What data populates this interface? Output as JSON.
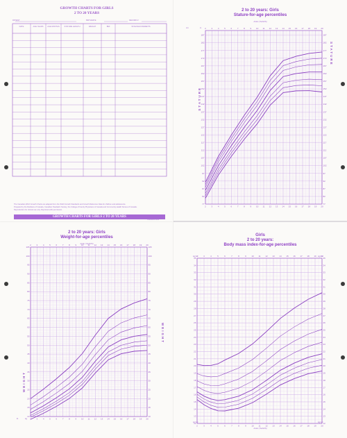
{
  "record": {
    "title": "GROWTH CHARTS FOR GIRLS",
    "subtitle": "2 TO 20 YEARS",
    "name_label": "PATIENT",
    "birthdate_label": "BIRTHDATE",
    "record_label": "RECORD #",
    "columns": [
      "DATE",
      "AGE YEARS",
      "AGE MONTHS",
      "STATURE LENGTH",
      "WEIGHT",
      "BMI",
      "STAGING/COMMENTS"
    ],
    "row_count": 20,
    "footer_band": "GROWTH CHARTS FOR GIRLS 2 TO 20 YEARS",
    "footer_note1": "The Canadian WHO Growth Charts are adapted from the WHO Growth Standards and Growth Reference Data for children and adolescents.",
    "footer_note2": "Prepared by the Dietitians of Canada, Canadian Paediatric Society, the College of Family Physicians of Canada and Community Health Nurses of Canada.",
    "footer_note3": "Reproduction for clinical use only. Reprinted with permission.",
    "footer_code": "CANADA 2010"
  },
  "stature": {
    "title_line1": "2 to 20 years: Girls",
    "title_line2": "Stature-for-age percentiles",
    "age_label": "AGE (YEARS)",
    "side_word": "STATURE",
    "unit_cm": "cm",
    "unit_in": "in"
  },
  "weight": {
    "title_line1": "2 to 20 years: Girls",
    "title_line2": "Weight-for-age percentiles",
    "age_label": "AGE (YEARS)",
    "side_word": "WEIGHT",
    "unit_kg": "kg",
    "unit_lb": "lb"
  },
  "bmi": {
    "title_line1": "Girls",
    "title_line2": "2 to 20 years:",
    "title_line3": "Body mass index-for-age percentiles",
    "age_label": "AGE (YEARS)",
    "unit": "kg/m²"
  },
  "colors": {
    "ink": "#9b59c9",
    "grid_light": "#e4d2f2",
    "grid_major": "#c9a6e6",
    "band": "#a668d4"
  }
}
